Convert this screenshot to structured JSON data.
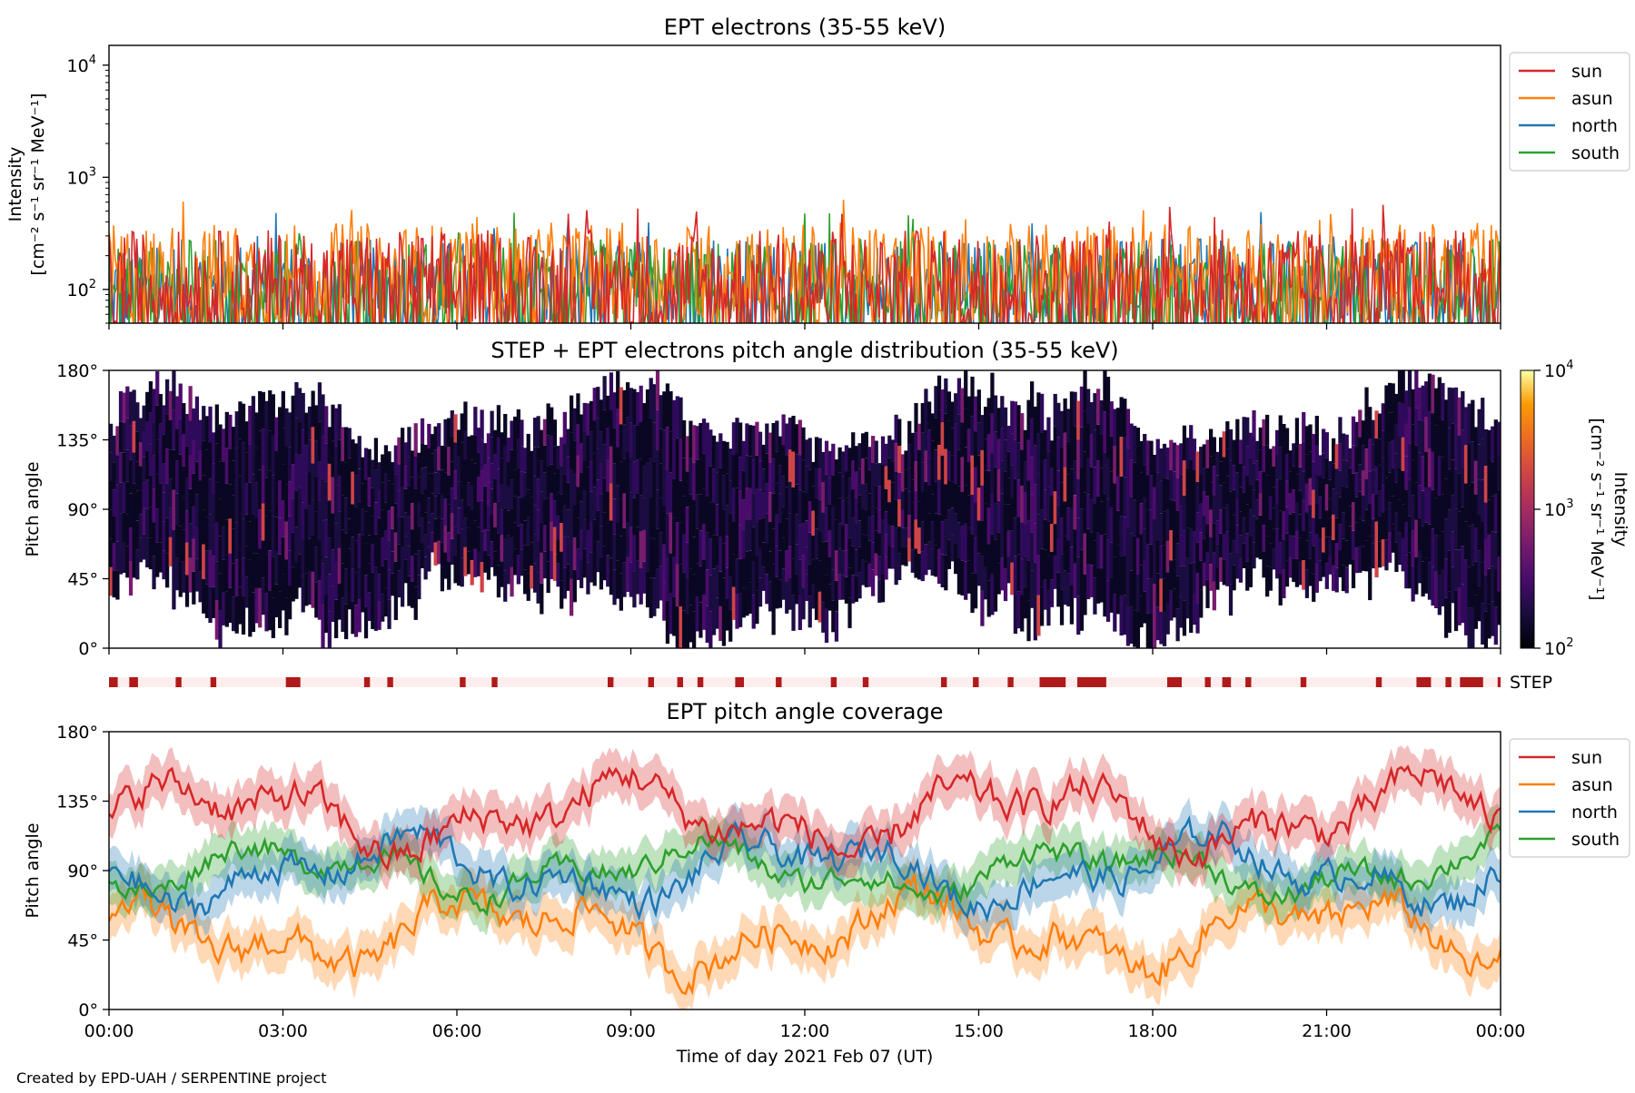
{
  "figure": {
    "credit": "Created by EPD-UAH / SERPENTINE project",
    "xlabel": "Time of day 2021 Feb 07 (UT)",
    "xticks": [
      "00:00",
      "03:00",
      "06:00",
      "09:00",
      "12:00",
      "15:00",
      "18:00",
      "21:00",
      "00:00"
    ]
  },
  "chart_data": [
    {
      "type": "line",
      "title": "EPT electrons (35-55 keV)",
      "ylabel_line1": "Intensity",
      "ylabel_line2": "[cm⁻² s⁻¹ sr⁻¹ MeV⁻¹]",
      "yscale": "log",
      "ylim": [
        50,
        15000
      ],
      "yticks": [
        {
          "value": 100,
          "base": "10",
          "exp": "2"
        },
        {
          "value": 1000,
          "base": "10",
          "exp": "3"
        },
        {
          "value": 10000,
          "base": "10",
          "exp": "4"
        }
      ],
      "x_range_hours": [
        0,
        24
      ],
      "legend_position": "outside right, top",
      "series": [
        {
          "name": "sun",
          "color": "#d62728",
          "typical": 110,
          "spread": 0.55
        },
        {
          "name": "asun",
          "color": "#ff7f0e",
          "typical": 140,
          "spread": 0.5
        },
        {
          "name": "north",
          "color": "#1f77b4",
          "typical": 100,
          "spread": 0.5
        },
        {
          "name": "south",
          "color": "#2ca02c",
          "typical": 100,
          "spread": 0.5
        }
      ]
    },
    {
      "type": "heatmap",
      "title": "STEP + EPT electrons pitch angle distribution (35-55 keV)",
      "ylabel": "Pitch angle",
      "ylim": [
        0,
        180
      ],
      "yticks": [
        "0°",
        "45°",
        "90°",
        "135°",
        "180°"
      ],
      "colorbar": {
        "label_line1": "Intensity",
        "label_line2": "[cm⁻² s⁻¹ sr⁻¹ MeV⁻¹]",
        "scale": "log",
        "range": [
          100,
          10000
        ],
        "ticks": [
          {
            "base": "10",
            "exp": "2"
          },
          {
            "base": "10",
            "exp": "3"
          },
          {
            "base": "10",
            "exp": "4"
          }
        ],
        "colormap": "inferno"
      },
      "step_strip": {
        "label": "STEP",
        "color": "#b11a1a",
        "background": "#fdeeee",
        "active_intervals_hours": [
          [
            0.0,
            0.15
          ],
          [
            0.35,
            0.5
          ],
          [
            1.15,
            1.25
          ],
          [
            1.75,
            1.85
          ],
          [
            3.05,
            3.3
          ],
          [
            4.4,
            4.5
          ],
          [
            4.8,
            4.9
          ],
          [
            6.05,
            6.15
          ],
          [
            6.6,
            6.7
          ],
          [
            8.6,
            8.7
          ],
          [
            9.3,
            9.4
          ],
          [
            9.8,
            9.9
          ],
          [
            10.15,
            10.25
          ],
          [
            10.8,
            10.95
          ],
          [
            11.5,
            11.6
          ],
          [
            12.45,
            12.55
          ],
          [
            13.0,
            13.1
          ],
          [
            14.35,
            14.45
          ],
          [
            14.9,
            15.0
          ],
          [
            15.5,
            15.6
          ],
          [
            16.05,
            16.5
          ],
          [
            16.7,
            17.2
          ],
          [
            18.25,
            18.5
          ],
          [
            18.9,
            19.0
          ],
          [
            19.2,
            19.35
          ],
          [
            19.6,
            19.7
          ],
          [
            20.55,
            20.65
          ],
          [
            21.85,
            21.95
          ],
          [
            22.55,
            22.8
          ],
          [
            23.05,
            23.15
          ],
          [
            23.3,
            23.7
          ],
          [
            23.95,
            24.0
          ]
        ]
      }
    },
    {
      "type": "line",
      "title": "EPT pitch angle coverage",
      "ylabel": "Pitch angle",
      "ylim": [
        0,
        180
      ],
      "yticks": [
        "0°",
        "45°",
        "90°",
        "135°",
        "180°"
      ],
      "x_range_hours": [
        0,
        24
      ],
      "legend_position": "outside right, top",
      "series": [
        {
          "name": "sun",
          "color": "#d62728",
          "mean_angle": 125,
          "amplitude": 28
        },
        {
          "name": "asun",
          "color": "#ff7f0e",
          "mean_angle": 50,
          "amplitude": 28
        },
        {
          "name": "north",
          "color": "#1f77b4",
          "mean_angle": 90,
          "amplitude": 25
        },
        {
          "name": "south",
          "color": "#2ca02c",
          "mean_angle": 90,
          "amplitude": 20
        }
      ]
    }
  ]
}
